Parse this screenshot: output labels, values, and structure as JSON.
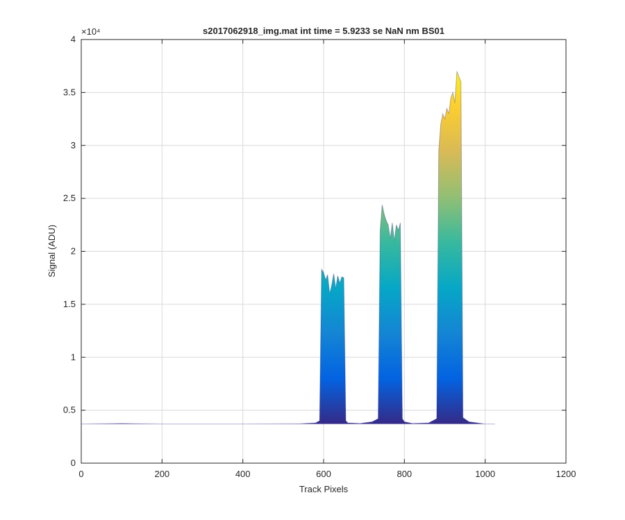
{
  "chart_data": {
    "type": "area",
    "title": "s2017062918_img.mat int time = 5.9233 se  NaN nm BS01",
    "xlabel": "Track Pixels",
    "ylabel": "Signal (ADU)",
    "y_exponent_label": "×10⁴",
    "xlim": [
      0,
      1200
    ],
    "ylim": [
      0,
      40000
    ],
    "x_ticks": [
      0,
      200,
      400,
      600,
      800,
      1000,
      1200
    ],
    "x_tick_labels": [
      "0",
      "200",
      "400",
      "600",
      "800",
      "1000",
      "1200"
    ],
    "y_ticks": [
      0,
      5000,
      10000,
      15000,
      20000,
      25000,
      30000,
      35000,
      40000
    ],
    "y_tick_labels": [
      "0",
      "0.5",
      "1",
      "1.5",
      "2",
      "2.5",
      "3",
      "3.5",
      "4"
    ],
    "grid": true,
    "colormap": [
      "#352a87",
      "#0363e1",
      "#1485d4",
      "#06a7c6",
      "#38b99e",
      "#92bf73",
      "#d9ba56",
      "#fcce2e",
      "#f9fb0e"
    ],
    "baseline": 3700,
    "x_end": 1024,
    "series": [
      {
        "x": [
          0,
          100,
          150,
          200,
          400,
          540,
          580,
          590,
          595,
          600,
          605,
          610,
          615,
          620,
          625,
          630,
          635,
          640,
          645,
          650,
          655,
          660,
          690,
          720,
          735,
          740,
          745,
          750,
          755,
          760,
          765,
          770,
          775,
          780,
          785,
          790,
          795,
          800,
          820,
          860,
          880,
          885,
          890,
          895,
          900,
          905,
          910,
          915,
          920,
          925,
          930,
          935,
          940,
          945,
          960,
          1000,
          1024
        ],
        "y": [
          3700,
          3750,
          3720,
          3700,
          3700,
          3720,
          3800,
          4000,
          18300,
          18000,
          17300,
          17800,
          16000,
          16800,
          17900,
          16500,
          17700,
          17000,
          17600,
          17500,
          4000,
          3800,
          3750,
          3900,
          4200,
          22000,
          24400,
          23500,
          22900,
          22500,
          21200,
          22700,
          21000,
          22500,
          22000,
          22700,
          4200,
          3900,
          3750,
          3800,
          4200,
          29500,
          32000,
          33000,
          32500,
          33500,
          33000,
          34500,
          35000,
          34000,
          37000,
          36500,
          36000,
          4300,
          3900,
          3700,
          3700
        ]
      }
    ]
  }
}
